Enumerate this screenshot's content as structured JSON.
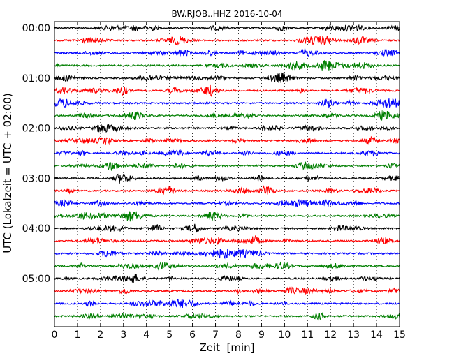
{
  "chart_data": {
    "type": "line",
    "title": "BW.RJOB..HHZ 2016-10-04",
    "xlabel": "Zeit  [min]",
    "ylabel": "UTC (Lokalzeit = UTC + 02:00)",
    "xlim": [
      0,
      15
    ],
    "x_ticks": [
      "0",
      "1",
      "2",
      "3",
      "4",
      "5",
      "6",
      "7",
      "8",
      "9",
      "10",
      "11",
      "12",
      "13",
      "14",
      "15"
    ],
    "grid": "vertical dotted at each minute",
    "trace_interval_min": 15,
    "trace_colors": [
      "#000000",
      "#ff0000",
      "#0000ff",
      "#007f00"
    ],
    "y_ticks": [
      {
        "label": "00:00",
        "trace_index": 0
      },
      {
        "label": "01:00",
        "trace_index": 4
      },
      {
        "label": "02:00",
        "trace_index": 8
      },
      {
        "label": "03:00",
        "trace_index": 12
      },
      {
        "label": "04:00",
        "trace_index": 16
      },
      {
        "label": "05:00",
        "trace_index": 20
      }
    ],
    "series": [
      {
        "start": "00:00",
        "color": "#000000"
      },
      {
        "start": "00:15",
        "color": "#ff0000"
      },
      {
        "start": "00:30",
        "color": "#0000ff"
      },
      {
        "start": "00:45",
        "color": "#007f00"
      },
      {
        "start": "01:00",
        "color": "#000000"
      },
      {
        "start": "01:15",
        "color": "#ff0000"
      },
      {
        "start": "01:30",
        "color": "#0000ff"
      },
      {
        "start": "01:45",
        "color": "#007f00"
      },
      {
        "start": "02:00",
        "color": "#000000"
      },
      {
        "start": "02:15",
        "color": "#ff0000"
      },
      {
        "start": "02:30",
        "color": "#0000ff"
      },
      {
        "start": "02:45",
        "color": "#007f00"
      },
      {
        "start": "03:00",
        "color": "#000000"
      },
      {
        "start": "03:15",
        "color": "#ff0000"
      },
      {
        "start": "03:30",
        "color": "#0000ff"
      },
      {
        "start": "03:45",
        "color": "#007f00"
      },
      {
        "start": "04:00",
        "color": "#000000"
      },
      {
        "start": "04:15",
        "color": "#ff0000"
      },
      {
        "start": "04:30",
        "color": "#0000ff"
      },
      {
        "start": "04:45",
        "color": "#007f00"
      },
      {
        "start": "05:00",
        "color": "#000000"
      },
      {
        "start": "05:15",
        "color": "#ff0000"
      },
      {
        "start": "05:30",
        "color": "#0000ff"
      },
      {
        "start": "05:45",
        "color": "#007f00"
      }
    ]
  }
}
